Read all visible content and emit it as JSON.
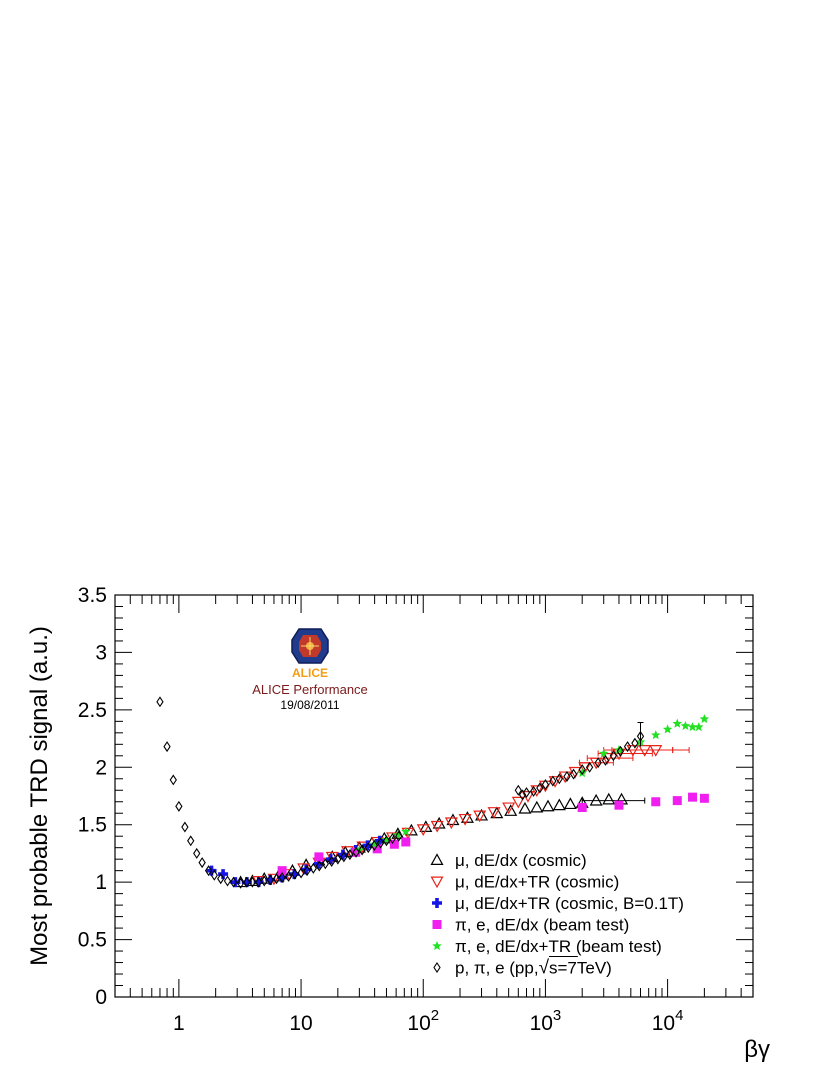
{
  "chart_data": {
    "type": "scatter",
    "title": "",
    "xlabel": "βγ",
    "ylabel": "Most probable TRD signal (a.u.)",
    "xscale": "log",
    "xlim": [
      0.3,
      50000
    ],
    "ylim": [
      0,
      3.5
    ],
    "yticks": [
      "0",
      "0.5",
      "1",
      "1.5",
      "2",
      "2.5",
      "3",
      "3.5"
    ],
    "ytick_values": [
      0,
      0.5,
      1,
      1.5,
      2,
      2.5,
      3,
      3.5
    ],
    "xticks": [
      {
        "value": 1,
        "base": "1",
        "exp": ""
      },
      {
        "value": 10,
        "base": "10",
        "exp": ""
      },
      {
        "value": 100,
        "base": "10",
        "exp": "2"
      },
      {
        "value": 1000,
        "base": "10",
        "exp": "3"
      },
      {
        "value": 10000,
        "base": "10",
        "exp": "4"
      }
    ],
    "legend_position": "bottom-right",
    "annotation": {
      "logo_text": "ALICE",
      "line1": "ALICE Performance",
      "line2": "19/08/2011",
      "position": "top-left"
    },
    "series": [
      {
        "name": "μ, dE/dx (cosmic)",
        "label_parts": [
          "μ, dE/dx (cosmic)"
        ],
        "marker": "triangle-up-open",
        "color": "#000000",
        "points": [
          [
            3.2,
            1.0
          ],
          [
            4.0,
            1.01
          ],
          [
            5.0,
            1.03
          ],
          [
            6.5,
            1.05
          ],
          [
            8.5,
            1.1
          ],
          [
            11,
            1.15
          ],
          [
            14,
            1.19
          ],
          [
            18,
            1.22
          ],
          [
            23,
            1.26
          ],
          [
            30,
            1.3
          ],
          [
            38,
            1.34
          ],
          [
            48,
            1.38
          ],
          [
            62,
            1.42
          ],
          [
            80,
            1.45
          ],
          [
            105,
            1.48
          ],
          [
            135,
            1.51
          ],
          [
            175,
            1.54
          ],
          [
            230,
            1.56
          ],
          [
            300,
            1.58
          ],
          [
            400,
            1.6
          ],
          [
            520,
            1.62
          ],
          [
            680,
            1.64
          ],
          [
            850,
            1.65
          ],
          [
            1050,
            1.66
          ],
          [
            1300,
            1.67
          ],
          [
            1600,
            1.68
          ],
          [
            2000,
            1.69
          ],
          [
            2600,
            1.71
          ],
          [
            3300,
            1.72
          ],
          [
            4200,
            1.72
          ]
        ],
        "xerr": [
          [
            2600,
            2000,
            6500
          ]
        ]
      },
      {
        "name": "μ, dE/dx+TR (cosmic)",
        "label_parts": [
          "μ, dE/dx+TR (cosmic)"
        ],
        "marker": "triangle-down-open",
        "color": "#e8231a",
        "points": [
          [
            4.5,
            1.01
          ],
          [
            6,
            1.03
          ],
          [
            8,
            1.07
          ],
          [
            10.5,
            1.12
          ],
          [
            14,
            1.17
          ],
          [
            18,
            1.22
          ],
          [
            24,
            1.27
          ],
          [
            32,
            1.31
          ],
          [
            42,
            1.35
          ],
          [
            56,
            1.39
          ],
          [
            75,
            1.43
          ],
          [
            100,
            1.46
          ],
          [
            130,
            1.49
          ],
          [
            170,
            1.52
          ],
          [
            220,
            1.55
          ],
          [
            290,
            1.58
          ],
          [
            380,
            1.61
          ],
          [
            500,
            1.65
          ],
          [
            600,
            1.7
          ],
          [
            720,
            1.75
          ],
          [
            850,
            1.8
          ],
          [
            1000,
            1.84
          ],
          [
            1200,
            1.88
          ],
          [
            1450,
            1.92
          ],
          [
            1750,
            1.96
          ],
          [
            2100,
            2.0
          ],
          [
            2600,
            2.04
          ],
          [
            3200,
            2.08
          ],
          [
            4000,
            2.12
          ],
          [
            5200,
            2.15
          ],
          [
            6500,
            2.15
          ],
          [
            8000,
            2.15
          ]
        ],
        "xerr": [
          [
            2600,
            1900,
            3600
          ],
          [
            3300,
            2200,
            5200
          ],
          [
            4200,
            2700,
            7500
          ],
          [
            5300,
            3000,
            11000
          ],
          [
            6500,
            3500,
            15000
          ],
          [
            8000,
            4200,
            11000
          ]
        ]
      },
      {
        "name": "μ, dE/dx+TR (cosmic, B=0.1T)",
        "label_parts": [
          "μ, dE/dx+TR (cosmic, B=0.1T)"
        ],
        "marker": "cross-filled",
        "color": "#1515e6",
        "points": [
          [
            1.85,
            1.1
          ],
          [
            2.3,
            1.07
          ],
          [
            2.9,
            1.0
          ],
          [
            3.6,
            1.0
          ],
          [
            4.5,
            1.0
          ],
          [
            5.6,
            1.02
          ],
          [
            7,
            1.04
          ],
          [
            8.8,
            1.07
          ],
          [
            11,
            1.11
          ],
          [
            14,
            1.16
          ],
          [
            17.5,
            1.2
          ],
          [
            22,
            1.24
          ],
          [
            28,
            1.28
          ],
          [
            35,
            1.32
          ],
          [
            44,
            1.36
          ]
        ]
      },
      {
        "name": "π, e, dE/dx (beam test)",
        "label_parts": [
          "π, e, dE/dx (beam test)"
        ],
        "marker": "square-filled",
        "color": "#f01ff0",
        "points": [
          [
            7,
            1.1
          ],
          [
            14,
            1.22
          ],
          [
            28,
            1.26
          ],
          [
            42,
            1.29
          ],
          [
            58,
            1.33
          ],
          [
            72,
            1.35
          ],
          [
            2000,
            1.65
          ],
          [
            4000,
            1.67
          ],
          [
            8000,
            1.7
          ],
          [
            12000,
            1.71
          ],
          [
            16000,
            1.74
          ],
          [
            20000,
            1.73
          ]
        ]
      },
      {
        "name": "π, e, dE/dx+TR (beam test)",
        "label_parts": [
          "π, e, dE/dx+TR (beam test)"
        ],
        "marker": "star-filled",
        "color": "#22e022",
        "points": [
          [
            30,
            1.28
          ],
          [
            40,
            1.33
          ],
          [
            50,
            1.37
          ],
          [
            62,
            1.41
          ],
          [
            72,
            1.44
          ],
          [
            2000,
            1.95
          ],
          [
            3000,
            2.12
          ],
          [
            4000,
            2.15
          ],
          [
            6000,
            2.22
          ],
          [
            8000,
            2.28
          ],
          [
            10000,
            2.33
          ],
          [
            12000,
            2.38
          ],
          [
            14000,
            2.36
          ],
          [
            16000,
            2.35
          ],
          [
            18000,
            2.35
          ],
          [
            20000,
            2.42
          ]
        ]
      },
      {
        "name": "p, π, e (pp, √s=7TeV)",
        "label_parts": [
          "p, π, e (pp,",
          "√",
          "s=7TeV)"
        ],
        "marker": "diamond-open",
        "color": "#000000",
        "points": [
          [
            0.7,
            2.57
          ],
          [
            0.8,
            2.18
          ],
          [
            0.9,
            1.89
          ],
          [
            1.0,
            1.66
          ],
          [
            1.12,
            1.48
          ],
          [
            1.25,
            1.36
          ],
          [
            1.4,
            1.25
          ],
          [
            1.55,
            1.17
          ],
          [
            1.75,
            1.1
          ],
          [
            1.95,
            1.06
          ],
          [
            2.2,
            1.03
          ],
          [
            2.5,
            1.01
          ],
          [
            2.8,
            1.0
          ],
          [
            3.2,
            0.99
          ],
          [
            3.6,
            1.0
          ],
          [
            4.0,
            1.0
          ],
          [
            4.5,
            1.0
          ],
          [
            5.0,
            1.01
          ],
          [
            5.6,
            1.02
          ],
          [
            6.3,
            1.03
          ],
          [
            7,
            1.04
          ],
          [
            7.9,
            1.05
          ],
          [
            8.9,
            1.07
          ],
          [
            10,
            1.08
          ],
          [
            11.2,
            1.1
          ],
          [
            12.6,
            1.12
          ],
          [
            14.1,
            1.14
          ],
          [
            15.8,
            1.16
          ],
          [
            17.8,
            1.18
          ],
          [
            20,
            1.2
          ],
          [
            22.4,
            1.22
          ],
          [
            25.1,
            1.24
          ],
          [
            28.2,
            1.26
          ],
          [
            31.6,
            1.28
          ],
          [
            35.5,
            1.3
          ],
          [
            39.8,
            1.32
          ],
          [
            44.7,
            1.34
          ],
          [
            50,
            1.36
          ],
          [
            56,
            1.38
          ],
          [
            63,
            1.4
          ],
          [
            600,
            1.8
          ],
          [
            650,
            1.76
          ],
          [
            700,
            1.78
          ],
          [
            800,
            1.79
          ],
          [
            900,
            1.82
          ],
          [
            1000,
            1.85
          ],
          [
            1150,
            1.88
          ],
          [
            1300,
            1.9
          ],
          [
            1500,
            1.92
          ],
          [
            1700,
            1.94
          ],
          [
            2000,
            1.98
          ],
          [
            2300,
            2.0
          ],
          [
            2700,
            2.04
          ],
          [
            3100,
            2.06
          ],
          [
            3600,
            2.1
          ],
          [
            4100,
            2.14
          ],
          [
            4700,
            2.18
          ],
          [
            5400,
            2.21
          ],
          [
            6000,
            2.27
          ]
        ],
        "yerr": [
          [
            6000,
            2.18,
            2.39
          ]
        ]
      }
    ]
  }
}
